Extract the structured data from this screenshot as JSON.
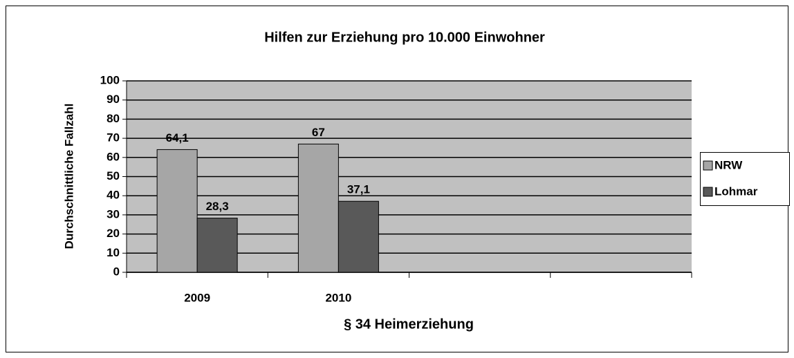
{
  "chart_data": {
    "type": "bar",
    "title": "Hilfen zur Erziehung pro 10.000 Einwohner",
    "xlabel": "§ 34 Heimerziehung",
    "ylabel": "Durchschnittliche Fallzahl",
    "categories": [
      "2009",
      "2010",
      null,
      null
    ],
    "series": [
      {
        "name": "NRW",
        "color": "#a6a6a6",
        "values": [
          64.1,
          67,
          null,
          null
        ],
        "value_labels": [
          "64,1",
          "67",
          null,
          null
        ]
      },
      {
        "name": "Lohmar",
        "color": "#595959",
        "values": [
          28.3,
          37.1,
          null,
          null
        ],
        "value_labels": [
          "28,3",
          "37,1",
          null,
          null
        ]
      }
    ],
    "ylim": [
      0,
      100
    ],
    "yticks": [
      0,
      10,
      20,
      30,
      40,
      50,
      60,
      70,
      80,
      90,
      100
    ],
    "grid": true,
    "legend": "right",
    "plot_background": "#c0c0c0"
  }
}
